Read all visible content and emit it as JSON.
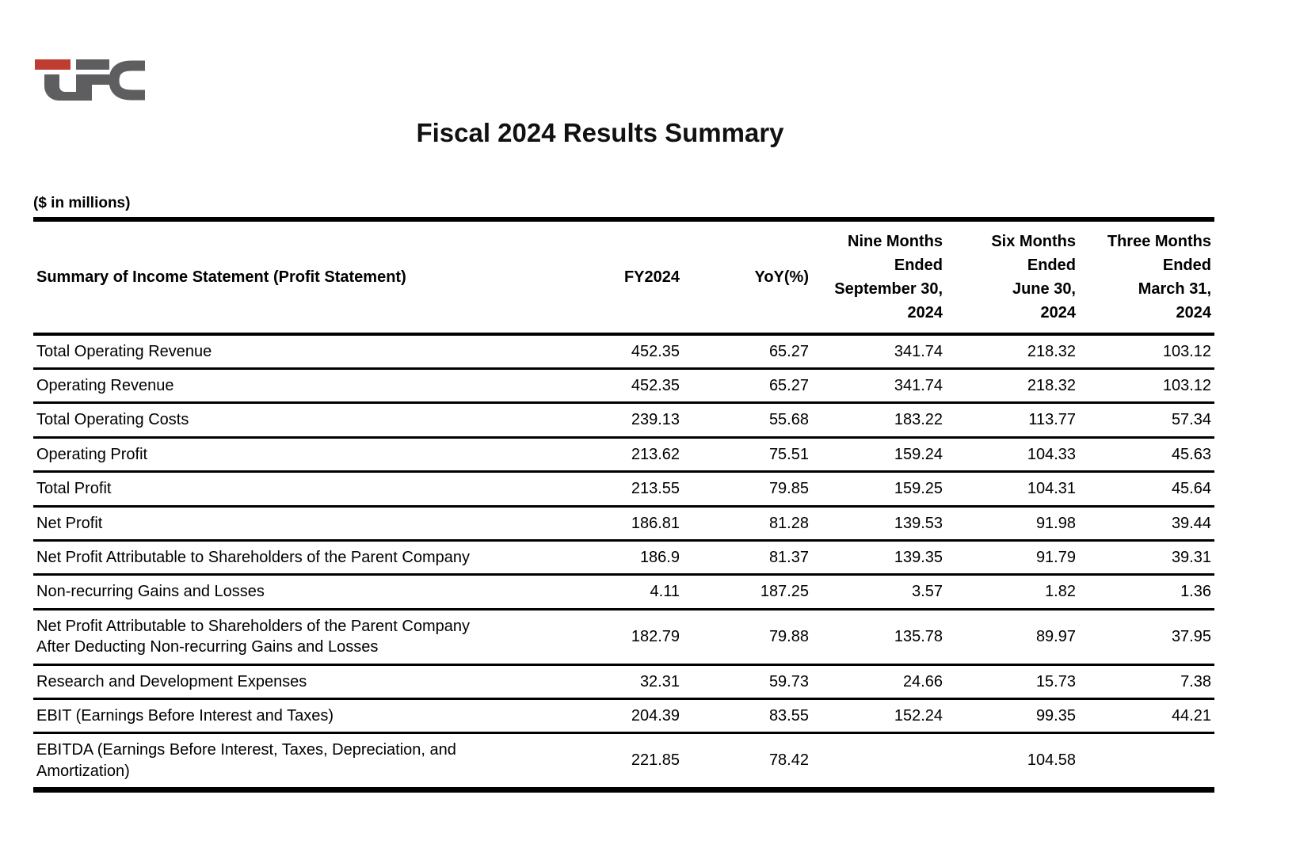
{
  "logo": {
    "name": "LFC",
    "red": "#bf3c30",
    "gray": "#5e5e60"
  },
  "title": "Fiscal 2024 Results Summary",
  "units_note": "($ in millions)",
  "table": {
    "label_header": "Summary of Income Statement (Profit Statement)",
    "columns": [
      "FY2024",
      "YoY(%)",
      "Nine Months\nEnded\nSeptember 30,\n2024",
      "Six Months\nEnded\nJune 30,\n2024",
      "Three Months\nEnded\nMarch 31,\n2024"
    ],
    "rows": [
      {
        "label": "Total Operating Revenue",
        "values": [
          "452.35",
          "65.27",
          "341.74",
          "218.32",
          "103.12"
        ]
      },
      {
        "label": "Operating Revenue",
        "values": [
          "452.35",
          "65.27",
          "341.74",
          "218.32",
          "103.12"
        ]
      },
      {
        "label": "Total Operating Costs",
        "values": [
          "239.13",
          "55.68",
          "183.22",
          "113.77",
          "57.34"
        ]
      },
      {
        "label": "Operating Profit",
        "values": [
          "213.62",
          "75.51",
          "159.24",
          "104.33",
          "45.63"
        ]
      },
      {
        "label": "Total Profit",
        "values": [
          "213.55",
          "79.85",
          "159.25",
          "104.31",
          "45.64"
        ]
      },
      {
        "label": "Net Profit",
        "values": [
          "186.81",
          "81.28",
          "139.53",
          "91.98",
          "39.44"
        ]
      },
      {
        "label": "Net Profit Attributable to Shareholders of the Parent Company",
        "values": [
          "186.9",
          "81.37",
          "139.35",
          "91.79",
          "39.31"
        ]
      },
      {
        "label": "Non-recurring Gains and Losses",
        "values": [
          "4.11",
          "187.25",
          "3.57",
          "1.82",
          "1.36"
        ]
      },
      {
        "label": "Net Profit Attributable to Shareholders of the Parent Company\nAfter Deducting Non-recurring Gains and Losses",
        "values": [
          "182.79",
          "79.88",
          "135.78",
          "89.97",
          "37.95"
        ]
      },
      {
        "label": "Research and Development Expenses",
        "values": [
          "32.31",
          "59.73",
          "24.66",
          "15.73",
          "7.38"
        ]
      },
      {
        "label": "EBIT (Earnings Before Interest and Taxes)",
        "values": [
          "204.39",
          "83.55",
          "152.24",
          "99.35",
          "44.21"
        ]
      },
      {
        "label": "EBITDA (Earnings Before Interest, Taxes, Depreciation, and\nAmortization)",
        "values": [
          "221.85",
          "78.42",
          "",
          "104.58",
          ""
        ]
      }
    ]
  }
}
